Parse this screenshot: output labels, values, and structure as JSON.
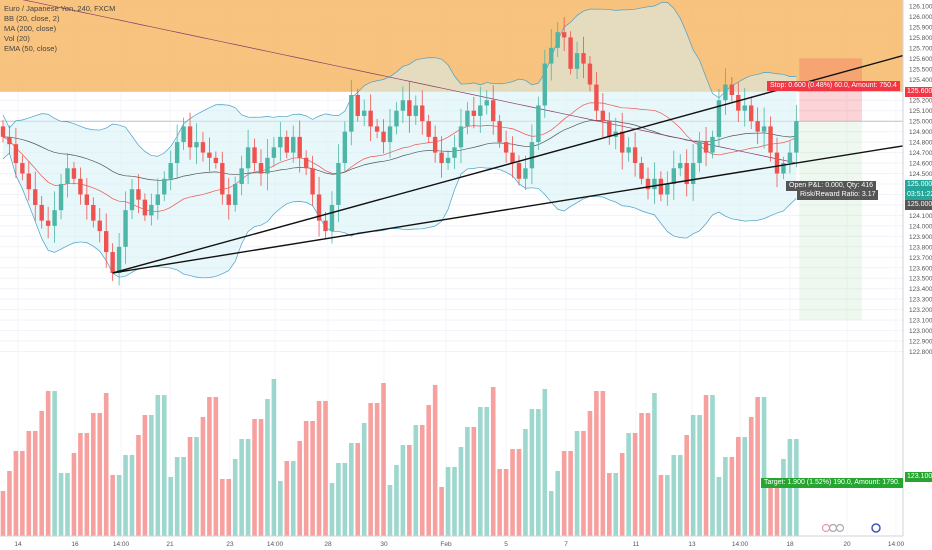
{
  "legend": {
    "symbol": "Euro / Japanese Yen, 240, FXCM",
    "bb": "BB (20, close, 2)",
    "ma": "MA (200, close)",
    "vol": "Vol (20)",
    "ema": "EMA (50, close)"
  },
  "price_labels": {
    "stop": "125.600",
    "current": "125.000",
    "countdown": "03:51:22",
    "entry": "125.000",
    "target": "123.100"
  },
  "trade": {
    "stop_text": "Stop: 0.600 (0.48%) 60.0, Amount: 750.4",
    "pnl_text": "Open P&L: 0.000, Qty: 416",
    "rr_text": "Risk/Reward Ratio: 3.17",
    "target_text": "Target: 1.900 (1.52%) 190.0, Amount: 1790."
  },
  "colors": {
    "up": "#4db6a6",
    "down": "#ef5350",
    "zone": "#f7b967",
    "stop_label": "#f23645",
    "target_label": "#26a630",
    "bb_band": "#4aa0c8",
    "ma200": "#8a3a6a",
    "ema": "#555555"
  },
  "chart_data": {
    "type": "candlestick",
    "y_axis": {
      "range": [
        122.7,
        126.2
      ],
      "ticks": [
        "126.100",
        "126.000",
        "125.900",
        "125.800",
        "125.700",
        "125.600",
        "125.500",
        "125.400",
        "125.300",
        "125.200",
        "125.100",
        "125.000",
        "124.900",
        "124.800",
        "124.700",
        "124.600",
        "124.500",
        "124.400",
        "124.300",
        "124.200",
        "124.100",
        "124.000",
        "123.900",
        "123.800",
        "123.700",
        "123.600",
        "123.500",
        "123.400",
        "123.300",
        "123.200",
        "123.100",
        "123.000",
        "122.900",
        "122.800"
      ]
    },
    "x_axis": {
      "labels": [
        "14",
        "16",
        "14:00",
        "21",
        "23",
        "14:00",
        "28",
        "30",
        "Feb",
        "5",
        "7",
        "11",
        "13",
        "14:00",
        "18",
        "20",
        "14:00"
      ]
    },
    "candles_close": [
      124.85,
      124.78,
      124.6,
      124.5,
      124.35,
      124.2,
      124.05,
      124.0,
      124.15,
      124.4,
      124.55,
      124.45,
      124.3,
      124.2,
      124.05,
      123.95,
      123.75,
      123.55,
      123.8,
      124.15,
      124.35,
      124.25,
      124.1,
      124.2,
      124.3,
      124.45,
      124.6,
      124.8,
      124.95,
      124.75,
      124.8,
      124.7,
      124.65,
      124.6,
      124.3,
      124.2,
      124.4,
      124.55,
      124.75,
      124.6,
      124.5,
      124.65,
      124.75,
      124.85,
      124.7,
      124.85,
      124.65,
      124.55,
      124.3,
      124.05,
      123.95,
      124.2,
      124.6,
      124.9,
      125.25,
      125.05,
      125.1,
      124.95,
      124.9,
      124.8,
      124.95,
      125.1,
      125.2,
      125.05,
      125.15,
      125.0,
      124.85,
      124.7,
      124.6,
      124.65,
      124.75,
      124.95,
      125.1,
      125.05,
      125.15,
      125.2,
      125.0,
      124.8,
      124.7,
      124.6,
      124.45,
      124.55,
      124.8,
      125.15,
      125.55,
      125.7,
      125.85,
      125.8,
      125.5,
      125.65,
      125.55,
      125.35,
      125.1,
      125.0,
      124.85,
      124.9,
      124.7,
      124.75,
      124.6,
      124.45,
      124.35,
      124.45,
      124.3,
      124.4,
      124.55,
      124.6,
      124.4,
      124.6,
      124.8,
      124.7,
      124.85,
      125.2,
      125.35,
      125.25,
      125.1,
      125.15,
      125.0,
      124.9,
      124.95,
      124.7,
      124.5,
      124.6,
      124.7,
      125.0
    ],
    "trade_levels": {
      "stop": 125.6,
      "entry": 125.0,
      "target": 123.1,
      "zone_low": 125.28
    },
    "trendlines": [
      {
        "from": [
          17,
          123.55
        ],
        "to": [
          125,
          125.38
        ]
      },
      {
        "from": [
          17,
          123.55
        ],
        "to": [
          125,
          124.62
        ]
      }
    ],
    "volume_color_rule": "up candle = teal, down candle = red"
  }
}
